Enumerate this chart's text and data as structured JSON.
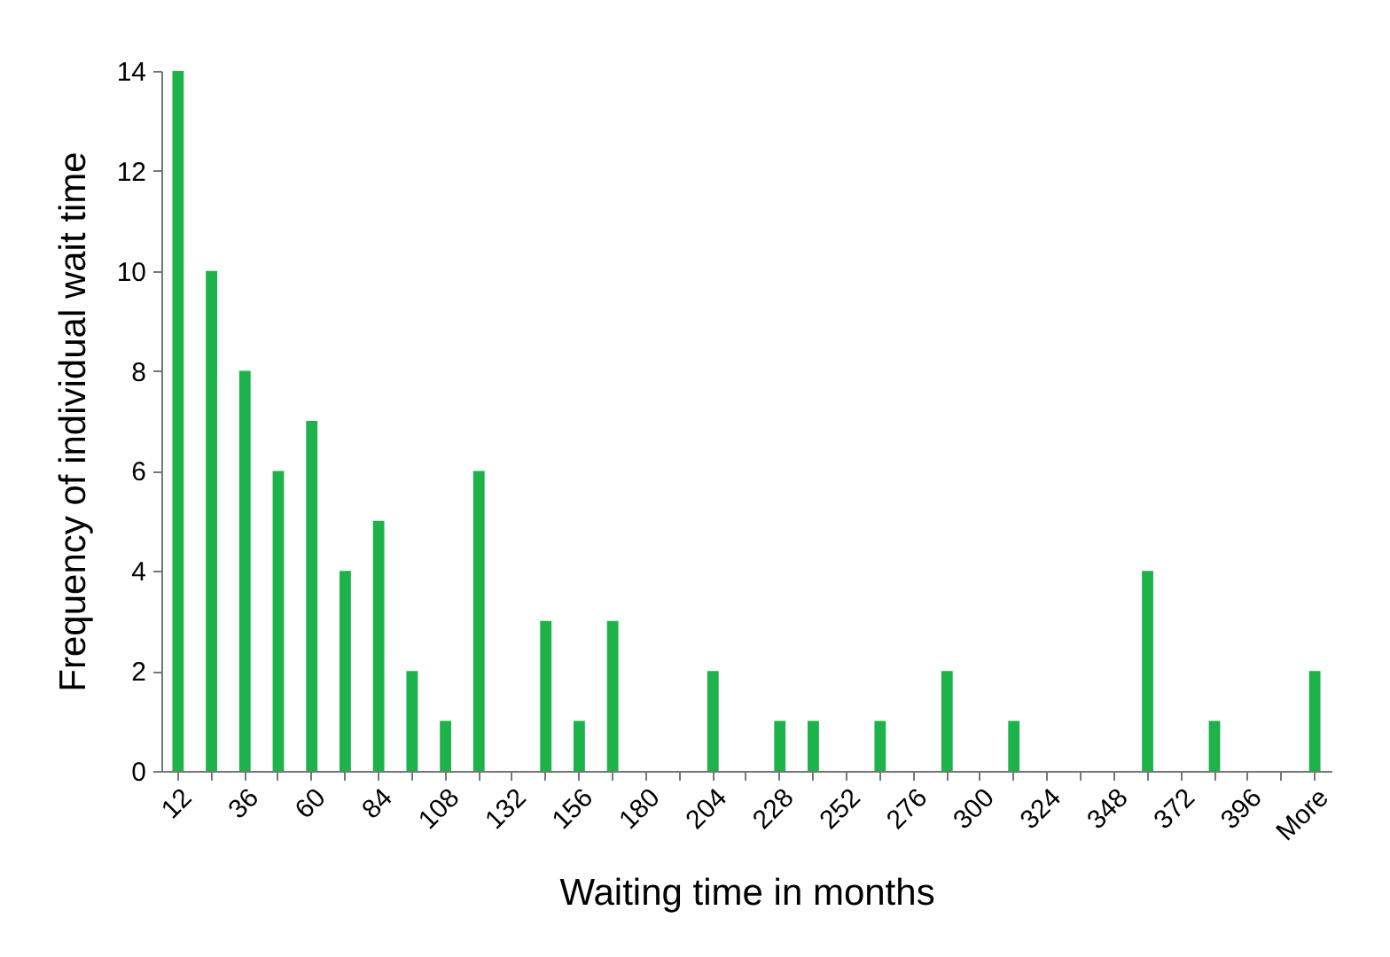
{
  "chart_data": {
    "type": "bar",
    "xlabel": "Waiting time in months",
    "ylabel": "Frequency of individual wait time",
    "categories": [
      "12",
      null,
      "36",
      null,
      "60",
      null,
      "84",
      null,
      "108",
      null,
      "132",
      null,
      "156",
      null,
      "180",
      null,
      "204",
      null,
      "228",
      null,
      "252",
      null,
      "276",
      null,
      "300",
      null,
      "324",
      null,
      "348",
      null,
      "372",
      null,
      "396",
      null,
      "More"
    ],
    "values": [
      14,
      10,
      8,
      6,
      7,
      4,
      5,
      2,
      1,
      6,
      0,
      3,
      1,
      3,
      0,
      0,
      2,
      0,
      1,
      1,
      0,
      1,
      0,
      2,
      0,
      1,
      0,
      0,
      0,
      4,
      0,
      1,
      0,
      0,
      2
    ],
    "color": "#1db34a",
    "ylim": [
      0,
      14
    ],
    "yticks": [
      0,
      2,
      4,
      6,
      8,
      10,
      12,
      14
    ],
    "grid": false
  }
}
